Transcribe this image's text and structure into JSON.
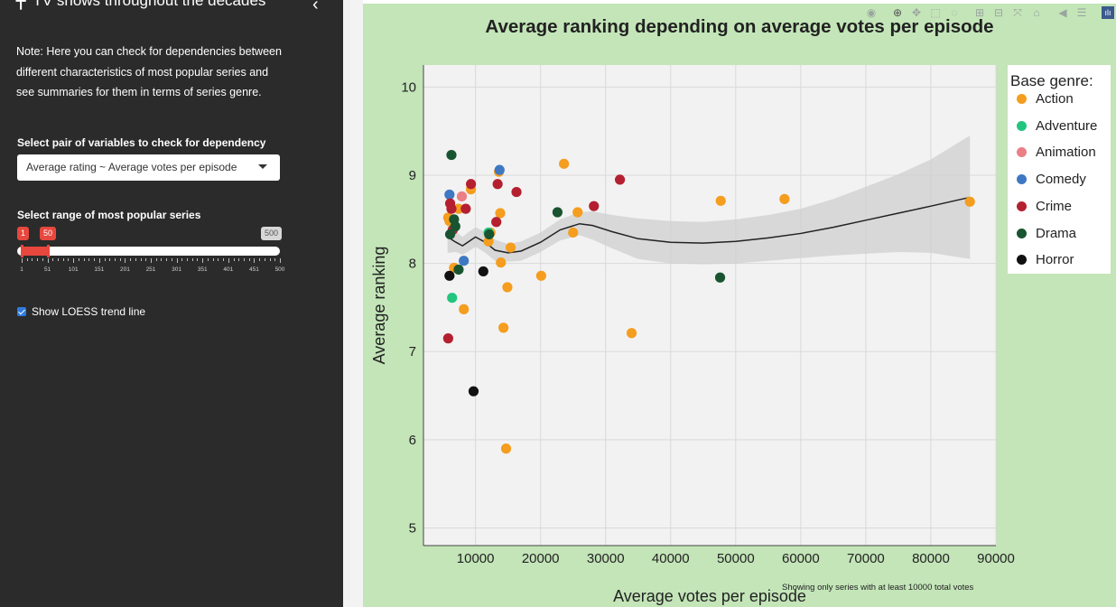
{
  "sidebar": {
    "title": "TV shows throughout the decades",
    "note": "Note: Here you can check for dependencies between different characteristics of most popular series and see summaries for them in terms of series genre.",
    "pair_label": "Select pair of variables to check for dependency",
    "pair_value": "Average rating ~ Average votes per episode",
    "range_label": "Select range of most popular series",
    "range_from": "1",
    "range_to": "50",
    "range_max": "500",
    "range_ticks": [
      "1",
      "51",
      "101",
      "151",
      "201",
      "251",
      "301",
      "351",
      "401",
      "451",
      "500"
    ],
    "loess_label": "Show LOESS trend line",
    "loess_checked": true
  },
  "plot": {
    "caption": "Showing only series with at least 10000 total votes"
  },
  "colors": {
    "Action": "#f59d1f",
    "Adventure": "#22c57e",
    "Animation": "#ea7f86",
    "Comedy": "#3f78c2",
    "Crime": "#b4202f",
    "Drama": "#195430",
    "Horror": "#111111"
  },
  "chart_data": {
    "type": "scatter",
    "title": "Average ranking depending on average votes per episode",
    "xlabel": "Average votes per episode",
    "ylabel": "Average ranking",
    "xlim": [
      2000,
      90000
    ],
    "ylim": [
      4.8,
      10.25
    ],
    "xticks": [
      10000,
      20000,
      30000,
      40000,
      50000,
      60000,
      70000,
      80000,
      90000
    ],
    "yticks": [
      5,
      6,
      7,
      8,
      9,
      10
    ],
    "grid": true,
    "legend_title": "Base genre:",
    "legend_position": "right",
    "series": [
      {
        "name": "Action",
        "points": [
          [
            5800,
            8.52
          ],
          [
            6000,
            8.48
          ],
          [
            6700,
            7.95
          ],
          [
            7400,
            8.62
          ],
          [
            8200,
            7.48
          ],
          [
            9300,
            8.84
          ],
          [
            12000,
            8.25
          ],
          [
            12300,
            8.35
          ],
          [
            13600,
            9.04
          ],
          [
            13800,
            8.57
          ],
          [
            13900,
            8.01
          ],
          [
            14300,
            7.27
          ],
          [
            14700,
            5.9
          ],
          [
            14900,
            7.73
          ],
          [
            15400,
            8.18
          ],
          [
            20100,
            7.86
          ],
          [
            23600,
            9.13
          ],
          [
            25000,
            8.35
          ],
          [
            25700,
            8.58
          ],
          [
            34000,
            7.21
          ],
          [
            47700,
            8.71
          ],
          [
            57500,
            8.73
          ],
          [
            86000,
            8.7
          ]
        ]
      },
      {
        "name": "Adventure",
        "points": [
          [
            6400,
            7.61
          ],
          [
            12000,
            8.35
          ]
        ]
      },
      {
        "name": "Animation",
        "points": [
          [
            7900,
            8.76
          ]
        ]
      },
      {
        "name": "Comedy",
        "points": [
          [
            6000,
            8.78
          ],
          [
            8200,
            8.03
          ],
          [
            13700,
            9.06
          ]
        ]
      },
      {
        "name": "Crime",
        "points": [
          [
            5800,
            7.15
          ],
          [
            6100,
            8.68
          ],
          [
            6300,
            8.62
          ],
          [
            6500,
            8.38
          ],
          [
            8500,
            8.62
          ],
          [
            9300,
            8.9
          ],
          [
            13200,
            8.47
          ],
          [
            13400,
            8.9
          ],
          [
            16300,
            8.81
          ],
          [
            28200,
            8.65
          ],
          [
            32200,
            8.95
          ]
        ]
      },
      {
        "name": "Drama",
        "points": [
          [
            6100,
            8.33
          ],
          [
            6300,
            9.23
          ],
          [
            6700,
            8.5
          ],
          [
            6900,
            8.42
          ],
          [
            7400,
            7.93
          ],
          [
            12100,
            8.33
          ],
          [
            22600,
            8.58
          ],
          [
            47600,
            7.84
          ]
        ]
      },
      {
        "name": "Horror",
        "points": [
          [
            6000,
            7.86
          ],
          [
            9700,
            6.55
          ],
          [
            11200,
            7.91
          ]
        ]
      }
    ],
    "trend": {
      "name": "LOESS",
      "x": [
        5700,
        7000,
        8000,
        9000,
        10000,
        11500,
        13000,
        15000,
        17000,
        20000,
        23000,
        26000,
        28000,
        31000,
        35000,
        40000,
        45000,
        50000,
        55000,
        60000,
        65000,
        70000,
        75000,
        80000,
        86000
      ],
      "y": [
        8.3,
        8.24,
        8.2,
        8.25,
        8.3,
        8.24,
        8.15,
        8.12,
        8.14,
        8.24,
        8.38,
        8.45,
        8.43,
        8.36,
        8.28,
        8.24,
        8.23,
        8.25,
        8.29,
        8.34,
        8.41,
        8.49,
        8.57,
        8.65,
        8.75
      ],
      "lower": [
        8.12,
        8.13,
        8.1,
        8.14,
        8.19,
        8.12,
        8.03,
        8.02,
        8.03,
        8.13,
        8.26,
        8.32,
        8.27,
        8.17,
        8.05,
        8.0,
        7.99,
        8.0,
        8.03,
        8.06,
        8.09,
        8.11,
        8.13,
        8.12,
        8.05
      ],
      "upper": [
        8.48,
        8.36,
        8.3,
        8.36,
        8.41,
        8.36,
        8.27,
        8.22,
        8.25,
        8.35,
        8.5,
        8.58,
        8.59,
        8.55,
        8.51,
        8.48,
        8.47,
        8.5,
        8.55,
        8.62,
        8.73,
        8.87,
        9.01,
        9.18,
        9.45
      ]
    }
  }
}
